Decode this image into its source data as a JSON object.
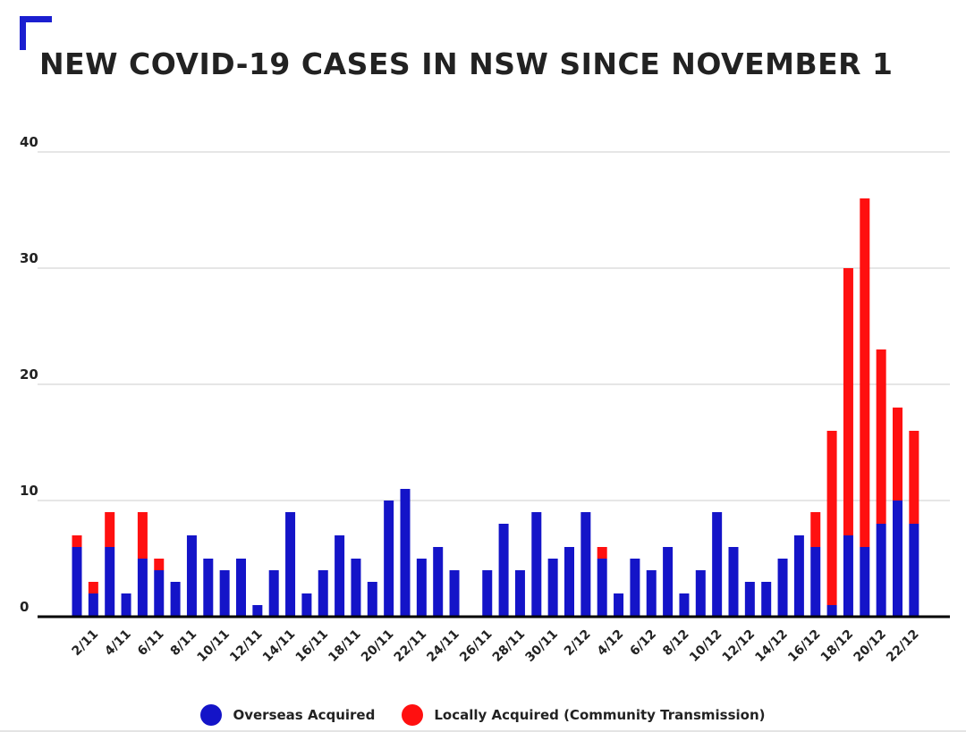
{
  "colors": {
    "overseas": "#1414c8",
    "local": "#ff1010",
    "accent": "#1b1fd0",
    "grid": "#cccccc",
    "axis": "#000000"
  },
  "chart_data": {
    "type": "bar",
    "stacked": true,
    "title": "NEW COVID-19 CASES IN NSW SINCE NOVEMBER 1",
    "xlabel": "",
    "ylabel": "",
    "ylim": [
      0,
      40
    ],
    "yticks": [
      0,
      10,
      20,
      30,
      40
    ],
    "grid": true,
    "legend_position": "bottom",
    "categories": [
      "1/11",
      "2/11",
      "3/11",
      "4/11",
      "5/11",
      "6/11",
      "7/11",
      "8/11",
      "9/11",
      "10/11",
      "11/11",
      "12/11",
      "13/11",
      "14/11",
      "15/11",
      "16/11",
      "17/11",
      "18/11",
      "19/11",
      "20/11",
      "21/11",
      "22/11",
      "23/11",
      "24/11",
      "25/11",
      "26/11",
      "27/11",
      "28/11",
      "29/11",
      "30/11",
      "1/12",
      "2/12",
      "3/12",
      "4/12",
      "5/12",
      "6/12",
      "7/12",
      "8/12",
      "9/12",
      "10/12",
      "11/12",
      "12/12",
      "13/12",
      "14/12",
      "15/12",
      "16/12",
      "17/12",
      "18/12",
      "19/12",
      "20/12",
      "21/12",
      "22/12"
    ],
    "tick_labels": [
      "2/11",
      "4/11",
      "6/11",
      "8/11",
      "10/11",
      "12/11",
      "14/11",
      "16/11",
      "18/11",
      "20/11",
      "22/11",
      "24/11",
      "26/11",
      "28/11",
      "30/11",
      "2/12",
      "4/12",
      "6/12",
      "8/12",
      "10/12",
      "12/12",
      "14/12",
      "16/12",
      "18/12",
      "20/12",
      "22/12"
    ],
    "series": [
      {
        "name": "Overseas Acquired",
        "values": [
          6,
          2,
          6,
          2,
          5,
          4,
          3,
          7,
          5,
          4,
          5,
          1,
          4,
          9,
          2,
          4,
          7,
          5,
          3,
          10,
          11,
          5,
          6,
          4,
          0,
          4,
          8,
          4,
          9,
          5,
          6,
          9,
          5,
          2,
          5,
          4,
          6,
          2,
          4,
          9,
          6,
          3,
          3,
          5,
          7,
          6,
          1,
          7,
          6,
          8,
          10,
          8
        ]
      },
      {
        "name": "Locally Acquired (Community Transmission)",
        "values": [
          1,
          1,
          3,
          0,
          4,
          1,
          0,
          0,
          0,
          0,
          0,
          0,
          0,
          0,
          0,
          0,
          0,
          0,
          0,
          0,
          0,
          0,
          0,
          0,
          0,
          0,
          0,
          0,
          0,
          0,
          0,
          0,
          1,
          0,
          0,
          0,
          0,
          0,
          0,
          0,
          0,
          0,
          0,
          0,
          0,
          3,
          15,
          23,
          30,
          15,
          8,
          8
        ]
      }
    ]
  }
}
